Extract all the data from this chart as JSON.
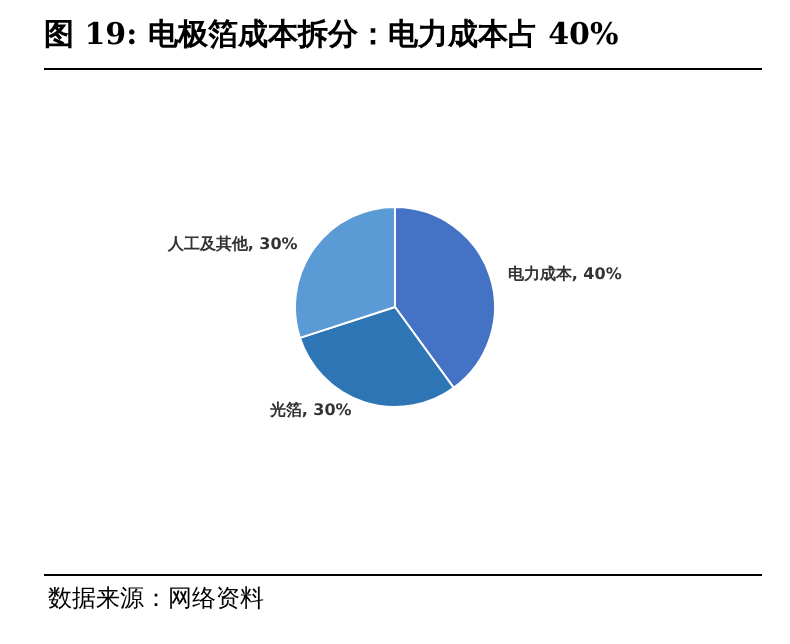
{
  "chart_data": {
    "type": "pie",
    "title": "图  19:  电极箔成本拆分：电力成本占 40%",
    "categories": [
      "电力成本",
      "光箔",
      "人工及其他"
    ],
    "values": [
      40,
      30,
      30
    ],
    "value_labels": [
      "40%",
      "30%",
      "30%"
    ],
    "colors": [
      "#4472c4",
      "#2e75b6",
      "#5b9bd5"
    ],
    "annotations": [
      "数据来源：网络资料"
    ],
    "legend": false
  }
}
